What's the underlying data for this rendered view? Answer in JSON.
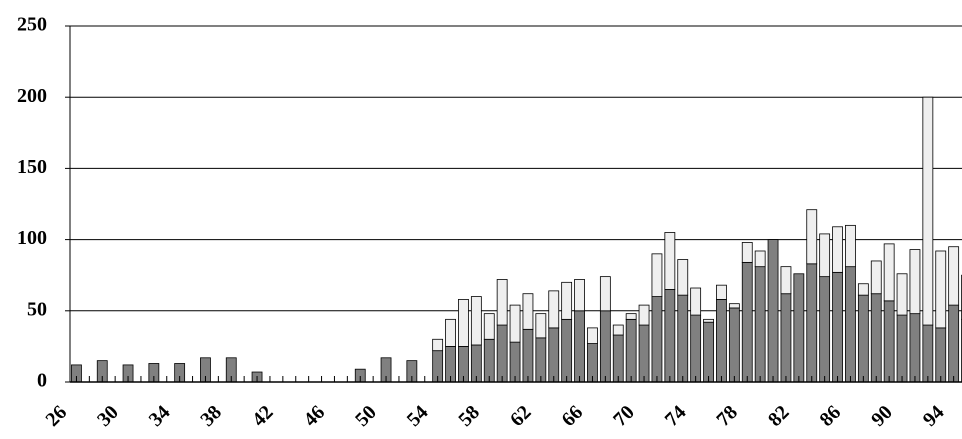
{
  "chart_data": {
    "type": "stacked-bar",
    "categories": [
      "26",
      null,
      null,
      null,
      "30",
      null,
      null,
      null,
      "34",
      null,
      null,
      null,
      "38",
      null,
      null,
      null,
      "42",
      null,
      null,
      null,
      "46",
      null,
      null,
      null,
      "50",
      null,
      null,
      null,
      "54",
      null,
      null,
      null,
      "58",
      null,
      null,
      null,
      "62",
      null,
      null,
      null,
      "66",
      null,
      null,
      null,
      "70",
      null,
      null,
      null,
      "74",
      null,
      null,
      null,
      "78",
      null,
      null,
      null,
      "82",
      null,
      null,
      null,
      "86",
      null,
      null,
      null,
      "90",
      null,
      null,
      null,
      "94",
      null
    ],
    "series": [
      {
        "color": "#808080",
        "values": [
          12,
          null,
          15,
          null,
          12,
          null,
          13,
          null,
          13,
          null,
          17,
          null,
          17,
          null,
          7,
          null,
          null,
          null,
          null,
          null,
          null,
          null,
          9,
          null,
          17,
          null,
          15,
          null,
          22,
          25,
          25,
          26,
          30,
          40,
          28,
          37,
          31,
          38,
          44,
          50,
          27,
          50,
          33,
          44,
          40,
          60,
          65,
          61,
          47,
          42,
          58,
          52,
          84,
          81,
          100,
          62,
          76,
          83,
          74,
          77,
          81,
          61,
          62,
          57,
          47,
          48,
          40,
          38,
          54,
          44
        ]
      },
      {
        "color": "#efefef",
        "values": [
          null,
          null,
          null,
          null,
          null,
          null,
          null,
          null,
          null,
          null,
          null,
          null,
          null,
          null,
          null,
          null,
          null,
          null,
          null,
          null,
          null,
          null,
          null,
          null,
          null,
          null,
          null,
          null,
          8,
          19,
          33,
          34,
          18,
          32,
          26,
          25,
          17,
          26,
          26,
          22,
          11,
          24,
          7,
          4,
          14,
          30,
          40,
          25,
          19,
          2,
          10,
          3,
          14,
          11,
          0,
          19,
          0,
          38,
          30,
          32,
          29,
          8,
          23,
          40,
          29,
          45,
          160,
          54,
          41,
          31
        ]
      }
    ],
    "ylim": [
      0,
      250
    ],
    "yticks": [
      0,
      50,
      100,
      150,
      200,
      250
    ],
    "grid": true
  }
}
